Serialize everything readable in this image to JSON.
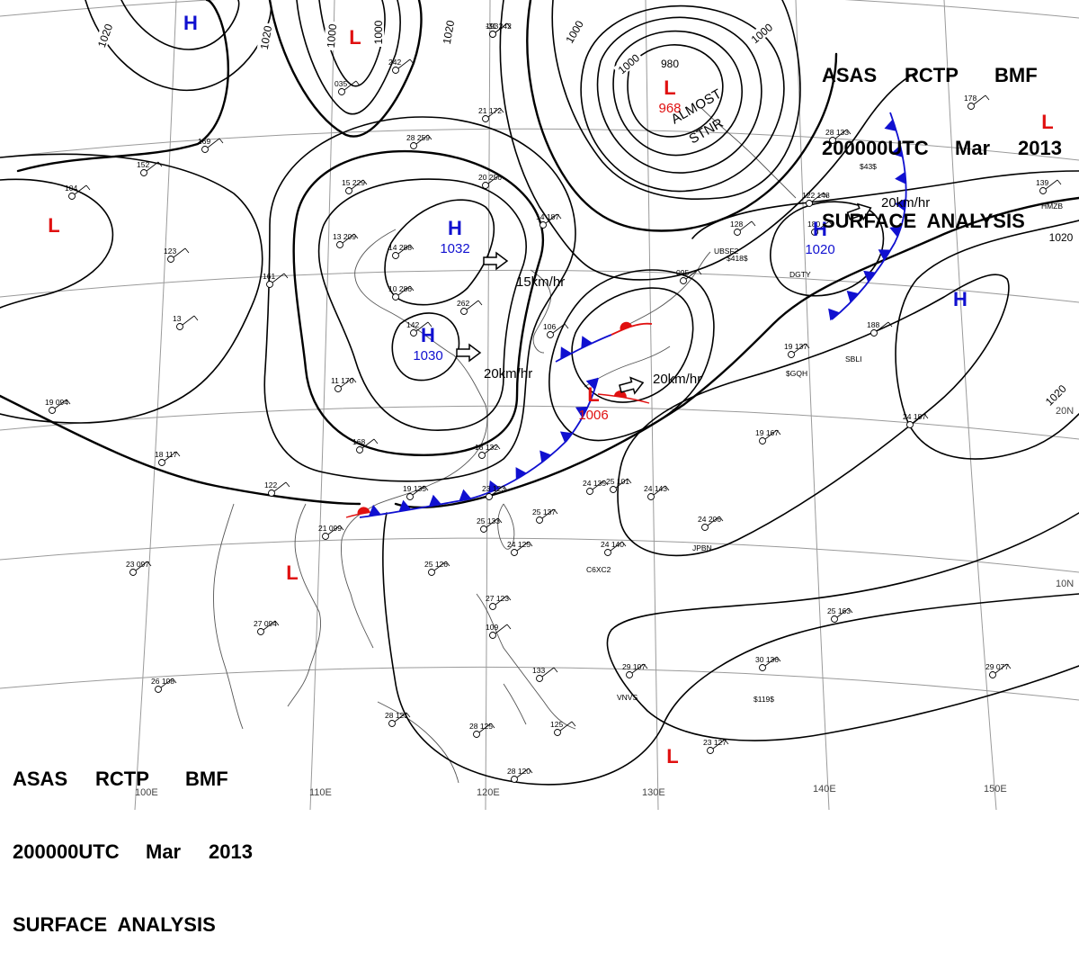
{
  "header": {
    "line1": [
      "ASAS",
      "RCTP",
      "BMF"
    ],
    "line2": [
      "200000UTC",
      "Mar",
      "2013"
    ],
    "line3": "SURFACE  ANALYSIS"
  },
  "colors": {
    "isobar": "#000000",
    "high": "#1010d0",
    "low": "#e01010",
    "cold_front": "#1010d0",
    "warm_front": "#e01010",
    "graticule": "#9a9a9a",
    "coast": "#555555"
  },
  "isobar_labels": [
    "1020",
    "1020",
    "1000",
    "1000",
    "1020",
    "1000",
    "1000",
    "980",
    "1000",
    "1020",
    "1020"
  ],
  "pressure_centers": [
    {
      "type": "H",
      "letter": "H",
      "value": ""
    },
    {
      "type": "L",
      "letter": "L",
      "value": ""
    },
    {
      "type": "H",
      "letter": "H",
      "value": "1032"
    },
    {
      "type": "H",
      "letter": "H",
      "value": "1030"
    },
    {
      "type": "L",
      "letter": "L",
      "value": "968"
    },
    {
      "type": "L",
      "letter": "L",
      "value": "1006"
    },
    {
      "type": "L",
      "letter": "L",
      "value": ""
    },
    {
      "type": "L",
      "letter": "L",
      "value": ""
    },
    {
      "type": "H",
      "letter": "H",
      "value": "1020"
    },
    {
      "type": "H",
      "letter": "H",
      "value": ""
    },
    {
      "type": "L",
      "letter": "L",
      "value": ""
    },
    {
      "type": "L",
      "letter": "L",
      "value": ""
    }
  ],
  "motion_labels": [
    "15km/hr",
    "20km/hr",
    "20km/hr",
    "20km/hr"
  ],
  "annotations": [
    "ALMOST",
    "STNR"
  ],
  "graticule_labels": {
    "longitude": [
      "100E",
      "110E",
      "120E",
      "130E",
      "140E",
      "150E"
    ],
    "latitude": [
      "20N",
      "10N"
    ]
  },
  "station_labels": [
    "UBSF2",
    "$418$",
    "DGTY",
    "SBLI",
    "C6XC2",
    "JPBN",
    "VNVS",
    "$119$",
    "$43$",
    "HMZB",
    "$GQH"
  ],
  "station_numbers": [
    "-31 242",
    "242",
    "035",
    "169",
    "152",
    "104",
    "123",
    "161",
    "13",
    "19 094",
    "18 117",
    "122",
    "21 099",
    "23 097",
    "27 094",
    "26 108",
    "28 121",
    "28 125",
    "28 120",
    "25 126",
    "25 133",
    "24 125",
    "27 123",
    "109",
    "133",
    "125",
    "24 140",
    "25 137",
    "23 123",
    "24 135",
    "25 101",
    "24 143",
    "18 132",
    "19 135",
    "168",
    "11 170",
    "14 288",
    "10 286",
    "142",
    "13 209",
    "15 229",
    "28 259",
    "21 172",
    "20 256",
    "14 187",
    "262",
    "106",
    "095",
    "128",
    "122 148",
    "180",
    "188",
    "19 137",
    "19 167",
    "24 187",
    "24 206",
    "25 163",
    "30 136",
    "29 077",
    "23 127",
    "29 107",
    "28 133",
    "139",
    "178",
    "193"
  ]
}
